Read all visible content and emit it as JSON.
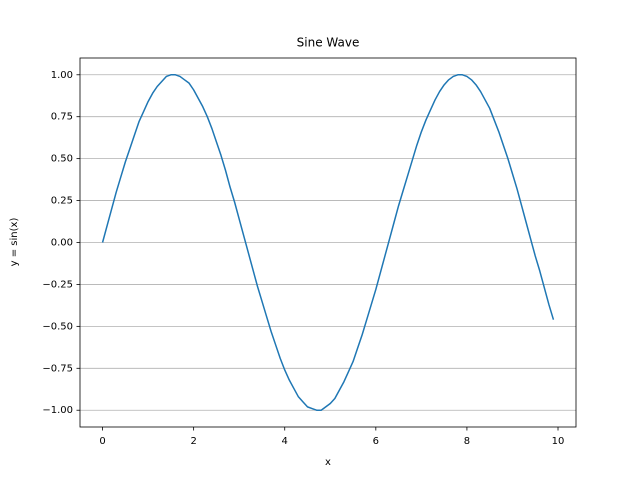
{
  "chart_data": {
    "type": "line",
    "title": "Sine Wave",
    "xlabel": "x",
    "ylabel": "y = sin(x)",
    "x": [
      0,
      0.1,
      0.2,
      0.3,
      0.4,
      0.5,
      0.6,
      0.7,
      0.8,
      0.9,
      1.0,
      1.1,
      1.2,
      1.3,
      1.4,
      1.5,
      1.6,
      1.7,
      1.8,
      1.9,
      2.0,
      2.1,
      2.2,
      2.3,
      2.4,
      2.5,
      2.6,
      2.7,
      2.8,
      2.9,
      3.0,
      3.1,
      3.2,
      3.3,
      3.4,
      3.5,
      3.6,
      3.7,
      3.8,
      3.9,
      4.0,
      4.1,
      4.2,
      4.3,
      4.4,
      4.5,
      4.6,
      4.7,
      4.8,
      4.9,
      5.0,
      5.1,
      5.2,
      5.3,
      5.4,
      5.5,
      5.6,
      5.7,
      5.8,
      5.9,
      6.0,
      6.1,
      6.2,
      6.3,
      6.4,
      6.5,
      6.6,
      6.7,
      6.8,
      6.9,
      7.0,
      7.1,
      7.2,
      7.3,
      7.4,
      7.5,
      7.6,
      7.7,
      7.8,
      7.9,
      8.0,
      8.1,
      8.2,
      8.3,
      8.4,
      8.5,
      8.6,
      8.7,
      8.8,
      8.9,
      9.0,
      9.1,
      9.2,
      9.3,
      9.4,
      9.5,
      9.6,
      9.7,
      9.8,
      9.9
    ],
    "series": [
      {
        "color": "#1f77b4",
        "values": [
          0,
          0.1,
          0.2,
          0.3,
          0.39,
          0.48,
          0.56,
          0.64,
          0.72,
          0.78,
          0.84,
          0.89,
          0.93,
          0.96,
          0.99,
          1.0,
          1.0,
          0.99,
          0.97,
          0.95,
          0.91,
          0.86,
          0.81,
          0.75,
          0.68,
          0.6,
          0.52,
          0.43,
          0.33,
          0.24,
          0.14,
          0.04,
          -0.06,
          -0.16,
          -0.26,
          -0.35,
          -0.44,
          -0.53,
          -0.61,
          -0.69,
          -0.76,
          -0.82,
          -0.87,
          -0.92,
          -0.95,
          -0.98,
          -0.99,
          -1.0,
          -1.0,
          -0.98,
          -0.96,
          -0.93,
          -0.88,
          -0.83,
          -0.77,
          -0.71,
          -0.63,
          -0.55,
          -0.46,
          -0.37,
          -0.28,
          -0.18,
          -0.08,
          0.02,
          0.12,
          0.22,
          0.31,
          0.4,
          0.49,
          0.58,
          0.66,
          0.73,
          0.79,
          0.85,
          0.9,
          0.94,
          0.97,
          0.99,
          1.0,
          1.0,
          0.99,
          0.97,
          0.94,
          0.9,
          0.85,
          0.8,
          0.73,
          0.66,
          0.58,
          0.5,
          0.41,
          0.32,
          0.22,
          0.12,
          0.02,
          -0.08,
          -0.17,
          -0.27,
          -0.37,
          -0.46
        ]
      }
    ],
    "xlim": [
      -0.495,
      10.395
    ],
    "ylim": [
      -1.1,
      1.1
    ],
    "xticks": [
      0,
      2,
      4,
      6,
      8,
      10
    ],
    "yticks": [
      {
        "value": -1,
        "label": "−1.00"
      },
      {
        "value": -0.75,
        "label": "−0.75"
      },
      {
        "value": -0.5,
        "label": "−0.50"
      },
      {
        "value": -0.25,
        "label": "−0.25"
      },
      {
        "value": 0,
        "label": "0.00"
      },
      {
        "value": 0.25,
        "label": "0.25"
      },
      {
        "value": 0.5,
        "label": "0.50"
      },
      {
        "value": 0.75,
        "label": "0.75"
      },
      {
        "value": 1,
        "label": "1.00"
      }
    ],
    "grid": "y"
  }
}
